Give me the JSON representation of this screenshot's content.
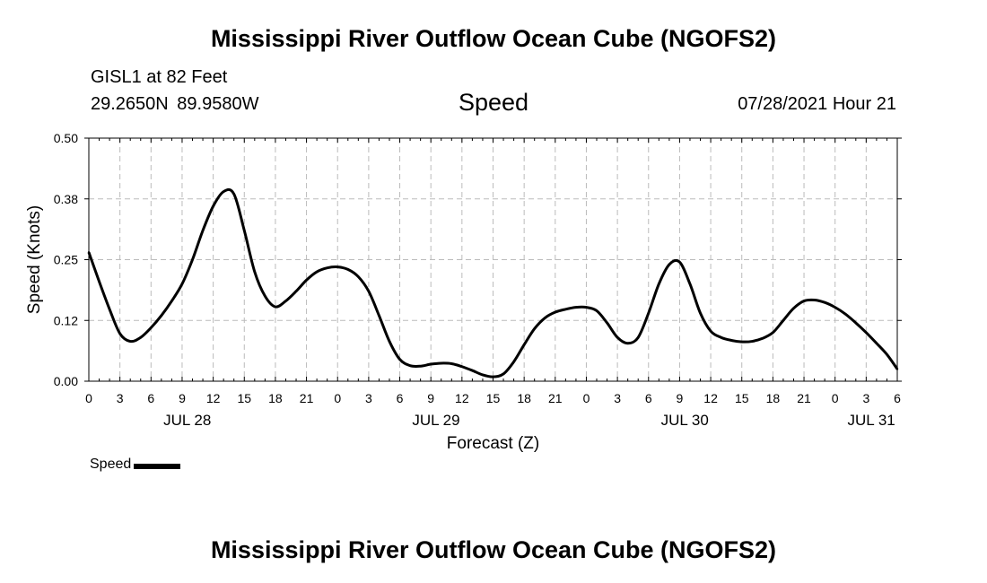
{
  "header": {
    "title": "Mississippi River Outflow Ocean Cube (NGOFS2)",
    "station": "GISL1 at 82 Feet",
    "coordinates": "29.2650N  89.9580W",
    "panel_title": "Speed",
    "timestamp": "07/28/2021 Hour 21"
  },
  "footer": {
    "title": "Mississippi River Outflow Ocean Cube (NGOFS2)"
  },
  "legend": {
    "label": "Speed",
    "color": "#000000"
  },
  "chart_data": {
    "type": "line",
    "title": "Speed",
    "xlabel": "Forecast (Z)",
    "ylabel": "Speed (Knots)",
    "ylim": [
      0,
      0.5
    ],
    "xlim": [
      0,
      78
    ],
    "x_unit": "hours since JUL 28 00Z",
    "grid": true,
    "yticks": [
      {
        "value": 0.0,
        "label": "0.00"
      },
      {
        "value": 0.125,
        "label": "0.12"
      },
      {
        "value": 0.25,
        "label": "0.25"
      },
      {
        "value": 0.375,
        "label": "0.38"
      },
      {
        "value": 0.5,
        "label": "0.50"
      }
    ],
    "xticks": [
      {
        "hour": 0,
        "label": "0"
      },
      {
        "hour": 3,
        "label": "3"
      },
      {
        "hour": 6,
        "label": "6"
      },
      {
        "hour": 9,
        "label": "9"
      },
      {
        "hour": 12,
        "label": "12"
      },
      {
        "hour": 15,
        "label": "15"
      },
      {
        "hour": 18,
        "label": "18"
      },
      {
        "hour": 21,
        "label": "21"
      },
      {
        "hour": 24,
        "label": "0"
      },
      {
        "hour": 27,
        "label": "3"
      },
      {
        "hour": 30,
        "label": "6"
      },
      {
        "hour": 33,
        "label": "9"
      },
      {
        "hour": 36,
        "label": "12"
      },
      {
        "hour": 39,
        "label": "15"
      },
      {
        "hour": 42,
        "label": "18"
      },
      {
        "hour": 45,
        "label": "21"
      },
      {
        "hour": 48,
        "label": "0"
      },
      {
        "hour": 51,
        "label": "3"
      },
      {
        "hour": 54,
        "label": "6"
      },
      {
        "hour": 57,
        "label": "9"
      },
      {
        "hour": 60,
        "label": "12"
      },
      {
        "hour": 63,
        "label": "15"
      },
      {
        "hour": 66,
        "label": "18"
      },
      {
        "hour": 69,
        "label": "21"
      },
      {
        "hour": 72,
        "label": "0"
      },
      {
        "hour": 75,
        "label": "3"
      },
      {
        "hour": 78,
        "label": "6"
      }
    ],
    "date_labels": [
      {
        "hour": 9.5,
        "label": "JUL 28"
      },
      {
        "hour": 33.5,
        "label": "JUL 29"
      },
      {
        "hour": 57.5,
        "label": "JUL 30"
      },
      {
        "hour": 75.5,
        "label": "JUL 31"
      }
    ],
    "series": [
      {
        "name": "Speed",
        "x": [
          0,
          1,
          2,
          3,
          4,
          5,
          6,
          7,
          8,
          9,
          10,
          11,
          12,
          13,
          14,
          15,
          16,
          17,
          18,
          19,
          20,
          21,
          22,
          23,
          24,
          25,
          26,
          27,
          28,
          29,
          30,
          31,
          32,
          33,
          34,
          35,
          36,
          37,
          38,
          39,
          40,
          41,
          42,
          43,
          44,
          45,
          46,
          47,
          48,
          49,
          50,
          51,
          52,
          53,
          54,
          55,
          56,
          57,
          58,
          59,
          60,
          61,
          62,
          63,
          64,
          65,
          66,
          67,
          68,
          69,
          70,
          71,
          72,
          73,
          74,
          75,
          76,
          77,
          78
        ],
        "values": [
          0.265,
          0.205,
          0.148,
          0.098,
          0.082,
          0.09,
          0.11,
          0.135,
          0.165,
          0.2,
          0.25,
          0.31,
          0.36,
          0.39,
          0.385,
          0.31,
          0.225,
          0.175,
          0.153,
          0.165,
          0.185,
          0.208,
          0.225,
          0.233,
          0.235,
          0.23,
          0.215,
          0.185,
          0.135,
          0.082,
          0.045,
          0.032,
          0.031,
          0.035,
          0.037,
          0.036,
          0.03,
          0.022,
          0.013,
          0.009,
          0.015,
          0.04,
          0.075,
          0.108,
          0.13,
          0.142,
          0.148,
          0.152,
          0.152,
          0.145,
          0.12,
          0.09,
          0.078,
          0.09,
          0.14,
          0.2,
          0.24,
          0.245,
          0.2,
          0.14,
          0.103,
          0.09,
          0.084,
          0.081,
          0.082,
          0.088,
          0.1,
          0.125,
          0.15,
          0.165,
          0.167,
          0.162,
          0.152,
          0.138,
          0.12,
          0.1,
          0.078,
          0.055,
          0.025
        ]
      }
    ]
  }
}
